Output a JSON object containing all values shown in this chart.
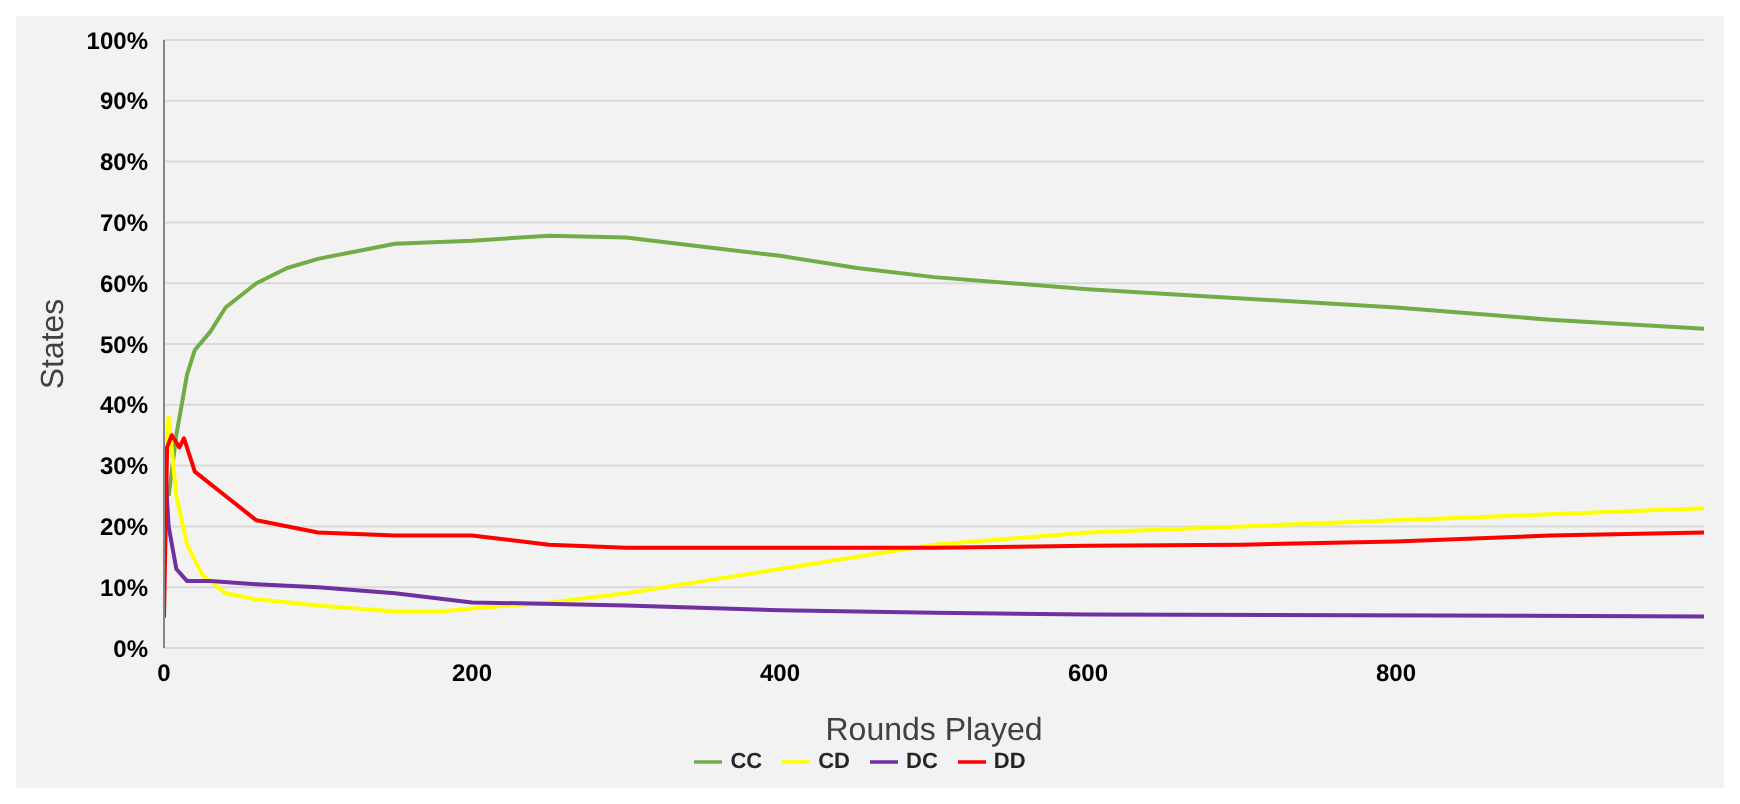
{
  "chart_data": {
    "type": "line",
    "xlabel": "Rounds Played",
    "ylabel": "States",
    "xlim": [
      0,
      1000
    ],
    "xticks": [
      0,
      200,
      400,
      600,
      800
    ],
    "ylim": [
      0,
      100
    ],
    "yticks": [
      {
        "value": 0,
        "label": "0%"
      },
      {
        "value": 10,
        "label": "10%"
      },
      {
        "value": 20,
        "label": "20%"
      },
      {
        "value": 30,
        "label": "30%"
      },
      {
        "value": 40,
        "label": "40%"
      },
      {
        "value": 50,
        "label": "50%"
      },
      {
        "value": 60,
        "label": "60%"
      },
      {
        "value": 70,
        "label": "70%"
      },
      {
        "value": 80,
        "label": "80%"
      },
      {
        "value": 90,
        "label": "90%"
      },
      {
        "value": 100,
        "label": "100%"
      }
    ],
    "grid": "y",
    "legend": "bottom",
    "marker": "none",
    "line_style": "solid",
    "series": [
      {
        "name": "CC",
        "color": "#70ad47",
        "x": [
          3,
          8,
          15,
          20,
          30,
          40,
          60,
          80,
          100,
          150,
          200,
          250,
          300,
          350,
          400,
          450,
          500,
          600,
          700,
          800,
          900,
          1000
        ],
        "values": [
          25,
          35,
          45,
          49,
          52,
          56,
          60,
          62.5,
          64,
          66.5,
          67,
          67.8,
          67.5,
          66,
          64.5,
          62.5,
          61,
          59,
          57.5,
          56,
          54,
          52.5
        ]
      },
      {
        "name": "CD",
        "color": "#ffff00",
        "x": [
          0,
          3,
          8,
          15,
          25,
          40,
          60,
          100,
          150,
          180,
          200,
          250,
          300,
          350,
          400,
          450,
          500,
          600,
          700,
          800,
          900,
          1000
        ],
        "values": [
          30,
          38,
          25,
          17,
          12,
          9,
          8,
          7,
          6,
          6,
          6.5,
          7.5,
          9,
          11,
          13,
          15,
          17,
          19,
          20,
          21,
          22,
          23
        ]
      },
      {
        "name": "DC",
        "color": "#7030a0",
        "x": [
          0,
          3,
          8,
          15,
          30,
          60,
          100,
          150,
          200,
          300,
          400,
          500,
          600,
          1000
        ],
        "values": [
          33,
          20,
          13,
          11,
          11,
          10.5,
          10,
          9,
          7.5,
          7,
          6.2,
          5.8,
          5.5,
          5.2
        ]
      },
      {
        "name": "DD",
        "color": "#ff0000",
        "x": [
          0,
          2,
          5,
          10,
          13,
          20,
          40,
          60,
          100,
          150,
          200,
          250,
          300,
          400,
          500,
          600,
          700,
          800,
          900,
          1000
        ],
        "values": [
          5,
          33,
          35,
          33,
          34.5,
          29,
          25,
          21,
          19,
          18.5,
          18.5,
          17,
          16.5,
          16.5,
          16.5,
          16.8,
          17,
          17.5,
          18.5,
          19
        ]
      }
    ]
  }
}
